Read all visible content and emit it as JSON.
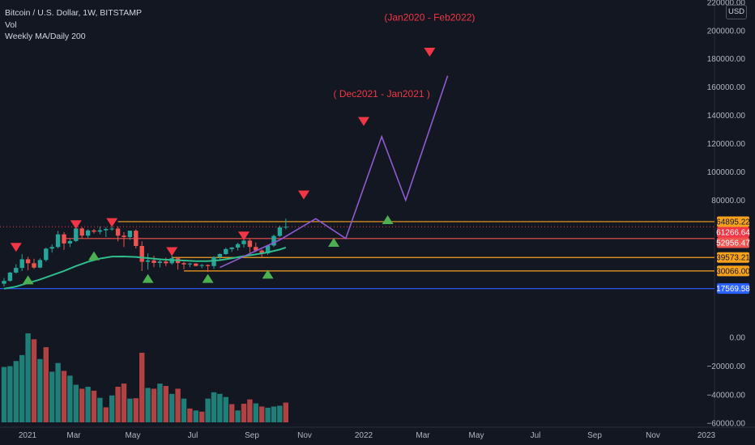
{
  "legend": {
    "symbol": "Bitcoin / U.S. Dollar, 1W, BITSTAMP",
    "volume": "Vol",
    "indicator": "Weekly MA/Daily 200"
  },
  "currency_button": "USD",
  "colors": {
    "background": "#131722",
    "up": "#26a69a",
    "down": "#ef5350",
    "ma": "#2ebd8c",
    "projection": "#8e5bd0",
    "orange_level": "#f7a21b",
    "red_level": "#ef5350",
    "blue_level": "#2962ff",
    "current_price": "#f23645",
    "annotation": "#f23645",
    "up_marker": "#4caf50"
  },
  "chart_data": {
    "type": "candlestick",
    "y_ticks": [
      "220000.00",
      "200000.00",
      "180000.00",
      "160000.00",
      "140000.00",
      "120000.00",
      "100000.00",
      "80000.00",
      "0.00",
      "−20000.00",
      "−40000.00",
      "−60000.00"
    ],
    "x_ticks": [
      "2021",
      "Mar",
      "May",
      "Jul",
      "Sep",
      "Nov",
      "2022",
      "Mar",
      "May",
      "Jul",
      "Sep",
      "Nov",
      "2023"
    ],
    "price_labels": [
      {
        "text": "64895.22",
        "value": 64895.22,
        "kind": "orange"
      },
      {
        "text": "61266.64",
        "value": 61266.64,
        "kind": "current"
      },
      {
        "text": "52956.47",
        "value": 52956.47,
        "kind": "red"
      },
      {
        "text": "39573.21",
        "value": 39573.21,
        "kind": "orange"
      },
      {
        "text": "30066.00",
        "value": 30066.0,
        "kind": "orange"
      },
      {
        "text": "17569.58",
        "value": 17569.58,
        "kind": "blue"
      }
    ],
    "candles": [
      {
        "o": 21000,
        "h": 25000,
        "l": 19000,
        "c": 23000
      },
      {
        "o": 23000,
        "h": 29300,
        "l": 22500,
        "c": 28900
      },
      {
        "o": 28900,
        "h": 34800,
        "l": 28100,
        "c": 32200
      },
      {
        "o": 32200,
        "h": 41900,
        "l": 30000,
        "c": 38300
      },
      {
        "o": 38300,
        "h": 40000,
        "l": 30500,
        "c": 35500
      },
      {
        "o": 35500,
        "h": 38700,
        "l": 31500,
        "c": 32400
      },
      {
        "o": 32400,
        "h": 39000,
        "l": 32000,
        "c": 37800
      },
      {
        "o": 37800,
        "h": 46500,
        "l": 36700,
        "c": 45800
      },
      {
        "o": 45800,
        "h": 48900,
        "l": 43000,
        "c": 47000
      },
      {
        "o": 47000,
        "h": 58300,
        "l": 46000,
        "c": 55900
      },
      {
        "o": 55900,
        "h": 57500,
        "l": 45000,
        "c": 49500
      },
      {
        "o": 49500,
        "h": 52600,
        "l": 47000,
        "c": 51200
      },
      {
        "o": 51200,
        "h": 61800,
        "l": 50500,
        "c": 60100
      },
      {
        "o": 60100,
        "h": 61000,
        "l": 53200,
        "c": 55000
      },
      {
        "o": 55000,
        "h": 59500,
        "l": 53500,
        "c": 58700
      },
      {
        "o": 58700,
        "h": 59700,
        "l": 56500,
        "c": 57800
      },
      {
        "o": 57800,
        "h": 61300,
        "l": 56000,
        "c": 58800
      },
      {
        "o": 58800,
        "h": 61000,
        "l": 54000,
        "c": 59700
      },
      {
        "o": 59700,
        "h": 64900,
        "l": 58500,
        "c": 60000
      },
      {
        "o": 60000,
        "h": 61500,
        "l": 51000,
        "c": 55000
      },
      {
        "o": 55000,
        "h": 57500,
        "l": 47000,
        "c": 54000
      },
      {
        "o": 54000,
        "h": 58500,
        "l": 52000,
        "c": 58500
      },
      {
        "o": 58500,
        "h": 59500,
        "l": 46000,
        "c": 47700
      },
      {
        "o": 47700,
        "h": 51000,
        "l": 30000,
        "c": 36500
      },
      {
        "o": 36500,
        "h": 42500,
        "l": 31000,
        "c": 37500
      },
      {
        "o": 37500,
        "h": 40800,
        "l": 32700,
        "c": 35700
      },
      {
        "o": 35700,
        "h": 39000,
        "l": 32500,
        "c": 36700
      },
      {
        "o": 36700,
        "h": 39500,
        "l": 33500,
        "c": 35500
      },
      {
        "o": 35500,
        "h": 41300,
        "l": 34500,
        "c": 39000
      },
      {
        "o": 39000,
        "h": 40000,
        "l": 31000,
        "c": 35600
      },
      {
        "o": 35600,
        "h": 36500,
        "l": 31200,
        "c": 34700
      },
      {
        "o": 34700,
        "h": 35800,
        "l": 32700,
        "c": 35300
      },
      {
        "o": 35300,
        "h": 35500,
        "l": 33200,
        "c": 33600
      },
      {
        "o": 33600,
        "h": 35000,
        "l": 32000,
        "c": 34200
      },
      {
        "o": 34200,
        "h": 34700,
        "l": 29300,
        "c": 33500
      },
      {
        "o": 33500,
        "h": 40500,
        "l": 31500,
        "c": 39800
      },
      {
        "o": 39800,
        "h": 42500,
        "l": 38300,
        "c": 42000
      },
      {
        "o": 42000,
        "h": 46500,
        "l": 41500,
        "c": 45500
      },
      {
        "o": 45500,
        "h": 47000,
        "l": 43500,
        "c": 46600
      },
      {
        "o": 46600,
        "h": 50000,
        "l": 44500,
        "c": 49000
      },
      {
        "o": 49000,
        "h": 52900,
        "l": 46600,
        "c": 51500
      },
      {
        "o": 51500,
        "h": 52700,
        "l": 42000,
        "c": 47000
      },
      {
        "o": 47000,
        "h": 50200,
        "l": 43400,
        "c": 44500
      },
      {
        "o": 44500,
        "h": 45300,
        "l": 39600,
        "c": 42500
      },
      {
        "o": 42500,
        "h": 48300,
        "l": 41500,
        "c": 48000
      },
      {
        "o": 48000,
        "h": 55700,
        "l": 47000,
        "c": 54800
      },
      {
        "o": 54800,
        "h": 62000,
        "l": 54000,
        "c": 60800
      },
      {
        "o": 60800,
        "h": 67000,
        "l": 59500,
        "c": 61300
      }
    ],
    "volume": [
      {
        "v": 14000,
        "up": true
      },
      {
        "v": 14200,
        "up": true
      },
      {
        "v": 15500,
        "up": true
      },
      {
        "v": 17000,
        "up": true
      },
      {
        "v": 22500,
        "up": true
      },
      {
        "v": 21000,
        "up": false
      },
      {
        "v": 16000,
        "up": true
      },
      {
        "v": 19000,
        "up": false
      },
      {
        "v": 12800,
        "up": true
      },
      {
        "v": 15000,
        "up": true
      },
      {
        "v": 13000,
        "up": false
      },
      {
        "v": 11800,
        "up": true
      },
      {
        "v": 9500,
        "up": true
      },
      {
        "v": 8500,
        "up": false
      },
      {
        "v": 9000,
        "up": true
      },
      {
        "v": 8000,
        "up": false
      },
      {
        "v": 6200,
        "up": true
      },
      {
        "v": 3800,
        "up": false
      },
      {
        "v": 6800,
        "up": true
      },
      {
        "v": 9000,
        "up": false
      },
      {
        "v": 9800,
        "up": false
      },
      {
        "v": 6000,
        "up": true
      },
      {
        "v": 6100,
        "up": false
      },
      {
        "v": 17600,
        "up": false
      },
      {
        "v": 8700,
        "up": true
      },
      {
        "v": 8500,
        "up": false
      },
      {
        "v": 9800,
        "up": true
      },
      {
        "v": 9200,
        "up": false
      },
      {
        "v": 7200,
        "up": true
      },
      {
        "v": 8500,
        "up": false
      },
      {
        "v": 6000,
        "up": true
      },
      {
        "v": 3500,
        "up": false
      },
      {
        "v": 3000,
        "up": true
      },
      {
        "v": 2700,
        "up": false
      },
      {
        "v": 6000,
        "up": true
      },
      {
        "v": 7600,
        "up": true
      },
      {
        "v": 7200,
        "up": true
      },
      {
        "v": 6400,
        "up": true
      },
      {
        "v": 4600,
        "up": false
      },
      {
        "v": 3000,
        "up": true
      },
      {
        "v": 4700,
        "up": false
      },
      {
        "v": 5800,
        "up": false
      },
      {
        "v": 4800,
        "up": true
      },
      {
        "v": 4000,
        "up": false
      },
      {
        "v": 3700,
        "up": true
      },
      {
        "v": 4000,
        "up": true
      },
      {
        "v": 4200,
        "up": true
      },
      {
        "v": 5000,
        "up": false
      }
    ],
    "moving_average": [
      {
        "i": 0,
        "v": 17500
      },
      {
        "i": 2,
        "v": 19000
      },
      {
        "i": 4,
        "v": 21500
      },
      {
        "i": 6,
        "v": 24000
      },
      {
        "i": 8,
        "v": 27000
      },
      {
        "i": 10,
        "v": 30000
      },
      {
        "i": 12,
        "v": 33500
      },
      {
        "i": 14,
        "v": 36500
      },
      {
        "i": 16,
        "v": 38800
      },
      {
        "i": 18,
        "v": 40200
      },
      {
        "i": 20,
        "v": 40300
      },
      {
        "i": 22,
        "v": 39900
      },
      {
        "i": 24,
        "v": 39100
      },
      {
        "i": 26,
        "v": 38300
      },
      {
        "i": 28,
        "v": 37800
      },
      {
        "i": 30,
        "v": 37400
      },
      {
        "i": 32,
        "v": 37000
      },
      {
        "i": 34,
        "v": 37000
      },
      {
        "i": 36,
        "v": 37700
      },
      {
        "i": 38,
        "v": 39000
      },
      {
        "i": 40,
        "v": 40500
      },
      {
        "i": 42,
        "v": 41800
      },
      {
        "i": 44,
        "v": 43200
      },
      {
        "i": 46,
        "v": 45200
      },
      {
        "i": 47,
        "v": 46600
      }
    ],
    "projection": [
      {
        "i": 36,
        "v": 32500
      },
      {
        "i": 46,
        "v": 52000
      },
      {
        "i": 52,
        "v": 67000
      },
      {
        "i": 57,
        "v": 53000
      },
      {
        "i": 63,
        "v": 125000
      },
      {
        "i": 67,
        "v": 80000
      },
      {
        "i": 74,
        "v": 168000
      }
    ],
    "levels": [
      {
        "value": 64895.22,
        "from_i": 19,
        "kind": "orange"
      },
      {
        "value": 52956.47,
        "from_i": 10,
        "kind": "red"
      },
      {
        "value": 39573.21,
        "from_i": 28,
        "kind": "orange"
      },
      {
        "value": 30066.0,
        "from_i": 30,
        "kind": "orange"
      },
      {
        "value": 17569.58,
        "from_i": -3,
        "kind": "blue"
      }
    ],
    "markers_down": [
      {
        "i": 2,
        "v": 47000
      },
      {
        "i": 12,
        "v": 63000
      },
      {
        "i": 18,
        "v": 64500
      },
      {
        "i": 28,
        "v": 44000
      },
      {
        "i": 40,
        "v": 55000
      },
      {
        "i": 50,
        "v": 84000
      },
      {
        "i": 60,
        "v": 136000
      },
      {
        "i": 71,
        "v": 185000
      }
    ],
    "markers_up": [
      {
        "i": 4,
        "v": 23500
      },
      {
        "i": 15,
        "v": 40500
      },
      {
        "i": 24,
        "v": 24500
      },
      {
        "i": 34,
        "v": 24500
      },
      {
        "i": 44,
        "v": 27500
      },
      {
        "i": 55,
        "v": 50000
      },
      {
        "i": 64,
        "v": 66000
      }
    ],
    "annotations": [
      {
        "text": "( Dec2021 - Jan2021 )",
        "i": 63,
        "v": 153000
      },
      {
        "text": "(Jan2020 - Feb2022)",
        "i": 71,
        "v": 207000
      }
    ]
  }
}
